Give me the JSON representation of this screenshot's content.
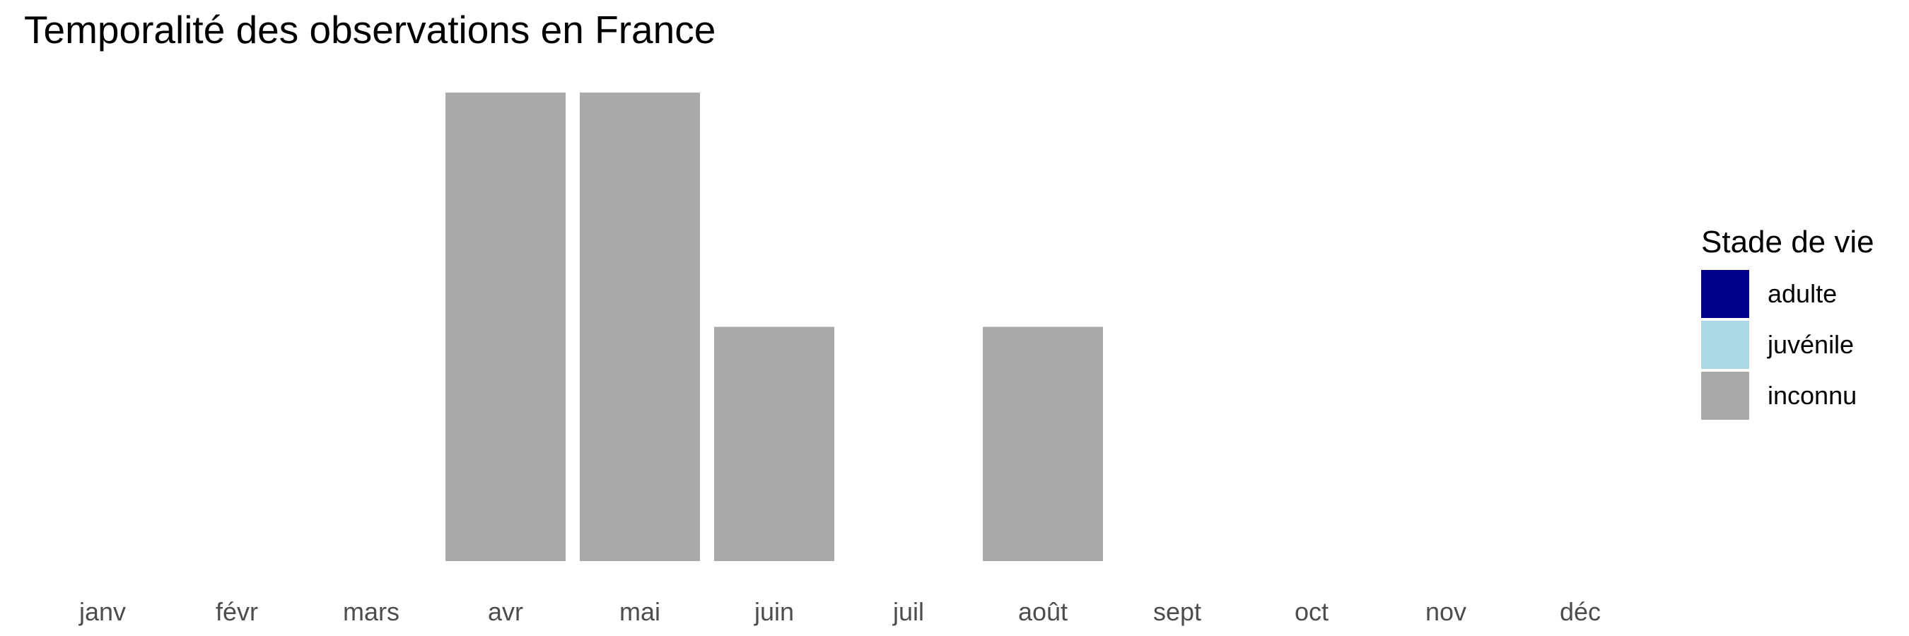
{
  "chart_data": {
    "type": "bar",
    "title": "Temporalité des observations en France",
    "xlabel": "",
    "ylabel": "",
    "categories": [
      "janv",
      "févr",
      "mars",
      "avr",
      "mai",
      "juin",
      "juil",
      "août",
      "sept",
      "oct",
      "nov",
      "déc"
    ],
    "series": [
      {
        "name": "adulte",
        "color": "#00008B",
        "values": [
          0,
          0,
          0,
          0,
          0,
          0,
          0,
          0,
          0,
          0,
          0,
          0
        ]
      },
      {
        "name": "juvénile",
        "color": "#ADD8E6",
        "values": [
          0,
          0,
          0,
          0,
          0,
          0,
          0,
          0,
          0,
          0,
          0,
          0
        ]
      },
      {
        "name": "inconnu",
        "color": "#A9A9A9",
        "values": [
          0,
          0,
          0,
          2,
          2,
          1,
          0,
          1,
          0,
          0,
          0,
          0
        ]
      }
    ],
    "stacked": true,
    "ylim": [
      0,
      2
    ],
    "grid": false,
    "y_axis_visible": false,
    "legend": {
      "title": "Stade de vie",
      "placement": "right"
    }
  }
}
